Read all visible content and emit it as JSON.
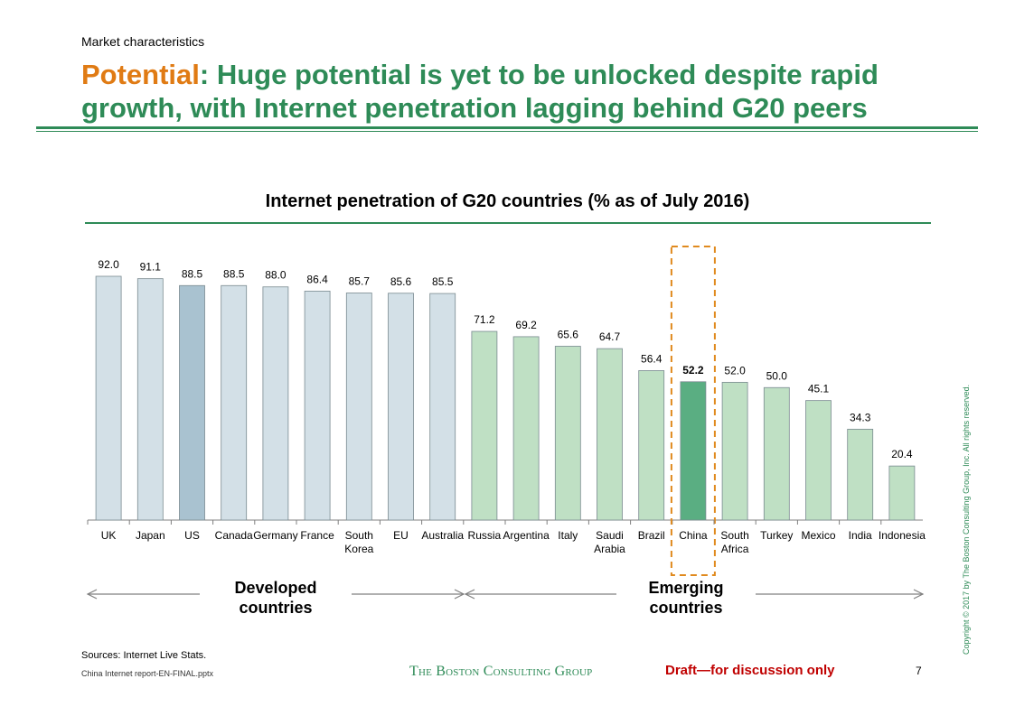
{
  "header": {
    "section_label": "Market characteristics",
    "title_highlight": "Potential",
    "title_rest": ": Huge potential is yet to be unlocked despite rapid growth, with Internet penetration lagging behind G20 peers"
  },
  "chart_data": {
    "type": "bar",
    "title": "Internet penetration of G20 countries (% as of July 2016)",
    "xlabel": "",
    "ylabel": "",
    "ylim": [
      0,
      100
    ],
    "categories": [
      [
        "UK"
      ],
      [
        "Japan"
      ],
      [
        "US"
      ],
      [
        "Canada"
      ],
      [
        "Germany"
      ],
      [
        "France"
      ],
      [
        "South",
        "Korea"
      ],
      [
        "EU"
      ],
      [
        "Australia"
      ],
      [
        "Russia"
      ],
      [
        "Argentina"
      ],
      [
        "Italy"
      ],
      [
        "Saudi",
        "Arabia"
      ],
      [
        "Brazil"
      ],
      [
        "China"
      ],
      [
        "South",
        "Africa"
      ],
      [
        "Turkey"
      ],
      [
        "Mexico"
      ],
      [
        "India"
      ],
      [
        "Indonesia"
      ]
    ],
    "values": [
      92.0,
      91.1,
      88.5,
      88.5,
      88.0,
      86.4,
      85.7,
      85.6,
      85.5,
      71.2,
      69.2,
      65.6,
      64.7,
      56.4,
      52.2,
      52.0,
      50.0,
      45.1,
      34.3,
      20.4
    ],
    "value_labels": [
      "92.0",
      "91.1",
      "88.5",
      "88.5",
      "88.0",
      "86.4",
      "85.7",
      "85.6",
      "85.5",
      "71.2",
      "69.2",
      "65.6",
      "64.7",
      "56.4",
      "52.2",
      "52.0",
      "50.0",
      "45.1",
      "34.3",
      "20.4"
    ],
    "groups": [
      "developed",
      "developed",
      "developed",
      "developed",
      "developed",
      "developed",
      "developed",
      "developed",
      "developed",
      "emerging",
      "emerging",
      "emerging",
      "emerging",
      "emerging",
      "emerging",
      "emerging",
      "emerging",
      "emerging",
      "emerging",
      "emerging"
    ],
    "highlights": [
      "US",
      "China"
    ],
    "group_labels": {
      "developed": [
        "Developed",
        "countries"
      ],
      "emerging": [
        "Emerging",
        "countries"
      ]
    },
    "colors": {
      "developed": "#d3e0e7",
      "developed_highlight": "#a9c2d0",
      "emerging": "#bfe0c4",
      "emerging_highlight": "#5aae82",
      "bar_stroke": "#7a8a90",
      "highlight_box": "#e08a1e",
      "arrow": "#808080"
    }
  },
  "footer": {
    "sources": "Sources: Internet Live Stats.",
    "file": "China Internet report-EN-FINAL.pptx",
    "logo": "THE BOSTON CONSULTING GROUP",
    "draft": "Draft—for discussion only",
    "page": "7",
    "copyright": "Copyright © 2017 by The Boston Consulting Group, Inc. All rights reserved."
  }
}
